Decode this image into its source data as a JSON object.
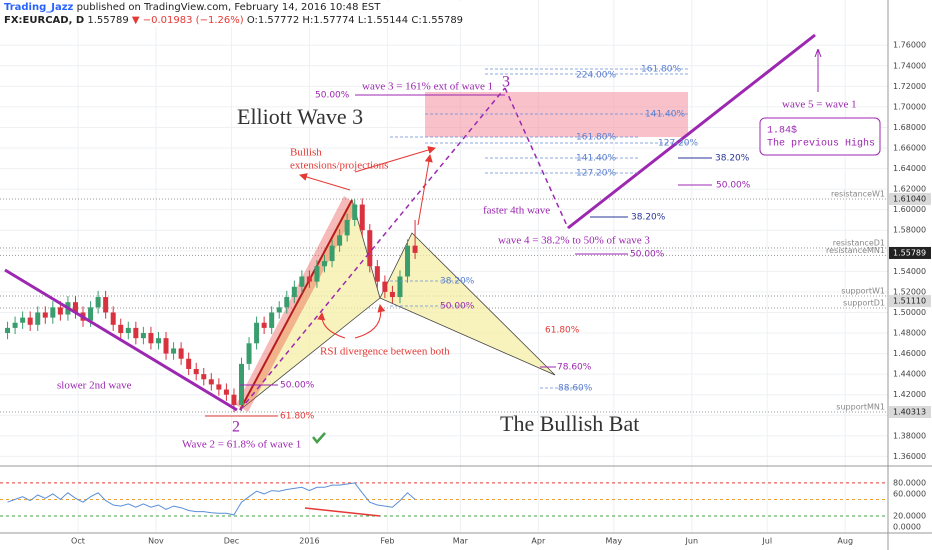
{
  "header": {
    "author": "Trading_Jazz",
    "published": "published on TradingView.com, February 14, 2016 10:48 EST",
    "symbol": "FX:EURCAD, D",
    "price": "1.55789",
    "change": "▼ −0.01983 (−1.26%)",
    "open": "O:1.57772",
    "high": "H:1.57774",
    "low": "L:1.55144",
    "close": "C:1.55789"
  },
  "chart_data": [
    {
      "type": "candlestick",
      "x": [
        2,
        5,
        8,
        11,
        14,
        17,
        20,
        23,
        26,
        29,
        32,
        35,
        38,
        41,
        44,
        47,
        50,
        53,
        56,
        59,
        62,
        65,
        68,
        71,
        74,
        77,
        80,
        83,
        86,
        89,
        92,
        95,
        98,
        101,
        104,
        107,
        110,
        113,
        116,
        119,
        122,
        125,
        128,
        131,
        134,
        137,
        140,
        143,
        146,
        149,
        152,
        155,
        158,
        161,
        164
      ],
      "open": [
        1.48,
        1.485,
        1.49,
        1.495,
        1.488,
        1.5,
        1.495,
        1.505,
        1.498,
        1.51,
        1.5,
        1.492,
        1.505,
        1.515,
        1.5,
        1.488,
        1.48,
        1.485,
        1.475,
        1.48,
        1.47,
        1.475,
        1.46,
        1.465,
        1.455,
        1.445,
        1.44,
        1.435,
        1.43,
        1.425,
        1.42,
        1.41,
        1.45,
        1.47,
        1.49,
        1.485,
        1.5,
        1.505,
        1.515,
        1.525,
        1.535,
        1.53,
        1.545,
        1.55,
        1.565,
        1.575,
        1.59,
        1.605,
        1.58,
        1.545,
        1.53,
        1.52,
        1.515,
        1.535,
        1.565
      ],
      "high": [
        1.491,
        1.496,
        1.501,
        1.501,
        1.506,
        1.506,
        1.511,
        1.511,
        1.516,
        1.516,
        1.506,
        1.511,
        1.521,
        1.521,
        1.506,
        1.494,
        1.491,
        1.491,
        1.486,
        1.486,
        1.481,
        1.481,
        1.471,
        1.471,
        1.461,
        1.451,
        1.446,
        1.441,
        1.436,
        1.431,
        1.426,
        1.456,
        1.476,
        1.496,
        1.496,
        1.506,
        1.511,
        1.521,
        1.531,
        1.541,
        1.541,
        1.551,
        1.556,
        1.571,
        1.581,
        1.596,
        1.61,
        1.611,
        1.586,
        1.551,
        1.536,
        1.526,
        1.541,
        1.571,
        1.59
      ],
      "low": [
        1.474,
        1.479,
        1.484,
        1.482,
        1.482,
        1.489,
        1.489,
        1.492,
        1.492,
        1.494,
        1.486,
        1.486,
        1.499,
        1.494,
        1.482,
        1.474,
        1.474,
        1.469,
        1.469,
        1.464,
        1.464,
        1.454,
        1.454,
        1.449,
        1.439,
        1.434,
        1.429,
        1.424,
        1.419,
        1.414,
        1.403,
        1.404,
        1.444,
        1.464,
        1.479,
        1.479,
        1.494,
        1.499,
        1.509,
        1.519,
        1.524,
        1.524,
        1.539,
        1.544,
        1.559,
        1.569,
        1.584,
        1.574,
        1.539,
        1.524,
        1.514,
        1.509,
        1.509,
        1.529,
        1.552
      ],
      "close": [
        1.485,
        1.49,
        1.495,
        1.488,
        1.5,
        1.495,
        1.505,
        1.498,
        1.51,
        1.5,
        1.492,
        1.505,
        1.515,
        1.5,
        1.488,
        1.48,
        1.485,
        1.475,
        1.48,
        1.47,
        1.475,
        1.46,
        1.465,
        1.455,
        1.445,
        1.44,
        1.435,
        1.43,
        1.425,
        1.42,
        1.41,
        1.45,
        1.47,
        1.49,
        1.485,
        1.5,
        1.505,
        1.515,
        1.525,
        1.535,
        1.53,
        1.545,
        1.55,
        1.565,
        1.575,
        1.59,
        1.605,
        1.58,
        1.545,
        1.53,
        1.52,
        1.515,
        1.535,
        1.565,
        1.558
      ],
      "up_color": "#3a9d6e",
      "down_color": "#d9313d",
      "xlim": [
        -1,
        352
      ],
      "xticks": [
        {
          "value": 30,
          "label": "Oct"
        },
        {
          "value": 61,
          "label": "Nov"
        },
        {
          "value": 91,
          "label": "Dec"
        },
        {
          "value": 122,
          "label": "2016"
        },
        {
          "value": 153,
          "label": "Feb"
        },
        {
          "value": 182,
          "label": "Mar"
        },
        {
          "value": 213,
          "label": "Apr"
        },
        {
          "value": 243,
          "label": "May"
        },
        {
          "value": 274,
          "label": "Jun"
        },
        {
          "value": 304,
          "label": "Jul"
        },
        {
          "value": 335,
          "label": "Aug"
        }
      ],
      "ylim": [
        1.3516,
        1.804
      ],
      "yticks": [
        {
          "value": 1.36,
          "label": "1.36000"
        },
        {
          "value": 1.38,
          "label": "1.38000"
        },
        {
          "value": 1.4,
          "label": "1.40000"
        },
        {
          "value": 1.42,
          "label": "1.42000"
        },
        {
          "value": 1.44,
          "label": "1.44000"
        },
        {
          "value": 1.46,
          "label": "1.46000"
        },
        {
          "value": 1.48,
          "label": "1.48000"
        },
        {
          "value": 1.5,
          "label": "1.50000"
        },
        {
          "value": 1.52,
          "label": "1.52000"
        },
        {
          "value": 1.54,
          "label": "1.54000"
        },
        {
          "value": 1.56,
          "label": "1.56000"
        },
        {
          "value": 1.58,
          "label": "1.58000"
        },
        {
          "value": 1.6,
          "label": "1.60000"
        },
        {
          "value": 1.62,
          "label": "1.62000"
        },
        {
          "value": 1.64,
          "label": "1.64000"
        },
        {
          "value": 1.66,
          "label": "1.66000"
        },
        {
          "value": 1.68,
          "label": "1.68000"
        },
        {
          "value": 1.7,
          "label": "1.70000"
        },
        {
          "value": 1.72,
          "label": "1.72000"
        },
        {
          "value": 1.74,
          "label": "1.74000"
        },
        {
          "value": 1.76,
          "label": "1.76000"
        }
      ],
      "grid": true,
      "levels": [
        {
          "name": "resistanceW1",
          "value": 1.6104
        },
        {
          "name": "resistanceD1",
          "value": 1.5627
        },
        {
          "name": "resistanceMN1",
          "value": 1.5555
        },
        {
          "name": "supportW1",
          "value": 1.516
        },
        {
          "name": "supportD1",
          "value": 1.5044
        },
        {
          "name": "supportMN1",
          "value": 1.40313
        }
      ],
      "price_tags": [
        {
          "value": 1.6104,
          "label": "1.61040",
          "color": "#d9d9d9"
        },
        {
          "value": 1.55789,
          "label": "1.55789",
          "color": "#222222"
        },
        {
          "value": 1.5111,
          "label": "1.51110",
          "color": "#d9d9d9"
        },
        {
          "value": 1.40313,
          "label": "1.40313",
          "color": "#d9d9d9"
        }
      ],
      "annotations": [
        "Elliott Wave 3",
        "The Bullish Bat",
        "Bullish",
        "extensions/projections",
        "RSI divergence between both",
        "slower 2nd wave",
        "Wave 2 = 61.8% of wave 1",
        "2",
        "3",
        "wave 3 = 161% ext of wave 1",
        "50.00%",
        "faster 4th wave",
        "wave 4 = 38.2% to 50% of wave 3",
        "wave 5 = wave 1",
        "1.84$",
        "The previous Highs",
        "224.00%",
        "161.80%",
        "141.40%",
        "127.20%",
        "161.80%",
        "141.40%",
        "127.20%",
        "38.20%",
        "50.00%",
        "38.20%",
        "50.00%",
        "38.20%",
        "50.00%",
        "61.80%",
        "78.60%",
        "88.60%",
        "50.00%",
        "61.80%"
      ]
    },
    {
      "type": "line",
      "values": [
        45,
        50,
        55,
        48,
        58,
        52,
        60,
        50,
        62,
        52,
        45,
        55,
        62,
        48,
        40,
        38,
        42,
        36,
        42,
        36,
        40,
        32,
        38,
        35,
        30,
        28,
        28,
        26,
        25,
        25,
        22,
        45,
        55,
        65,
        60,
        66,
        65,
        68,
        70,
        72,
        66,
        72,
        72,
        76,
        76,
        78,
        80,
        62,
        45,
        40,
        38,
        36,
        48,
        62,
        50
      ],
      "color": "#5b8fd6",
      "ylim": [
        -9,
        107
      ],
      "yticks": [
        {
          "value": 80,
          "label": "80.0000"
        },
        {
          "value": 60,
          "label": "60.0000"
        },
        {
          "value": 20,
          "label": "20.0000"
        },
        {
          "value": 0,
          "label": "0.0000"
        }
      ],
      "levels": [
        {
          "value": 80,
          "color": "#e53935"
        },
        {
          "value": 50,
          "color": "#f0a030"
        },
        {
          "value": 20,
          "color": "#43a047"
        }
      ]
    }
  ]
}
